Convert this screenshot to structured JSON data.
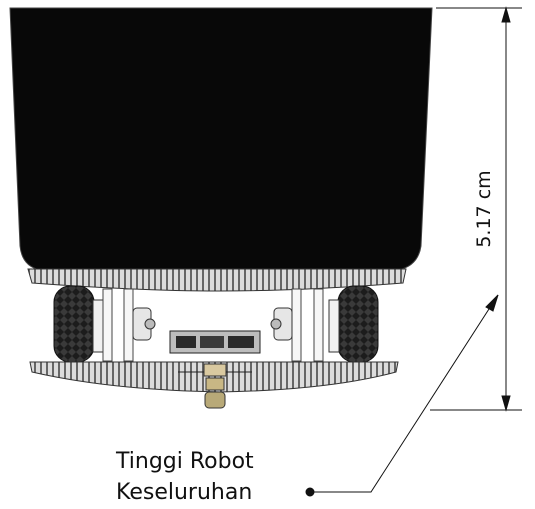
{
  "dimension": {
    "value_label": "5.17 cm"
  },
  "callout": {
    "line1": "Tinggi Robot",
    "line2": "Keseluruhan"
  },
  "colors": {
    "body": "#080808",
    "plate": "#d9d9d9",
    "tire": "#2e2e2e",
    "outline": "#222222",
    "wheel_rim": "#f2f2f2"
  }
}
